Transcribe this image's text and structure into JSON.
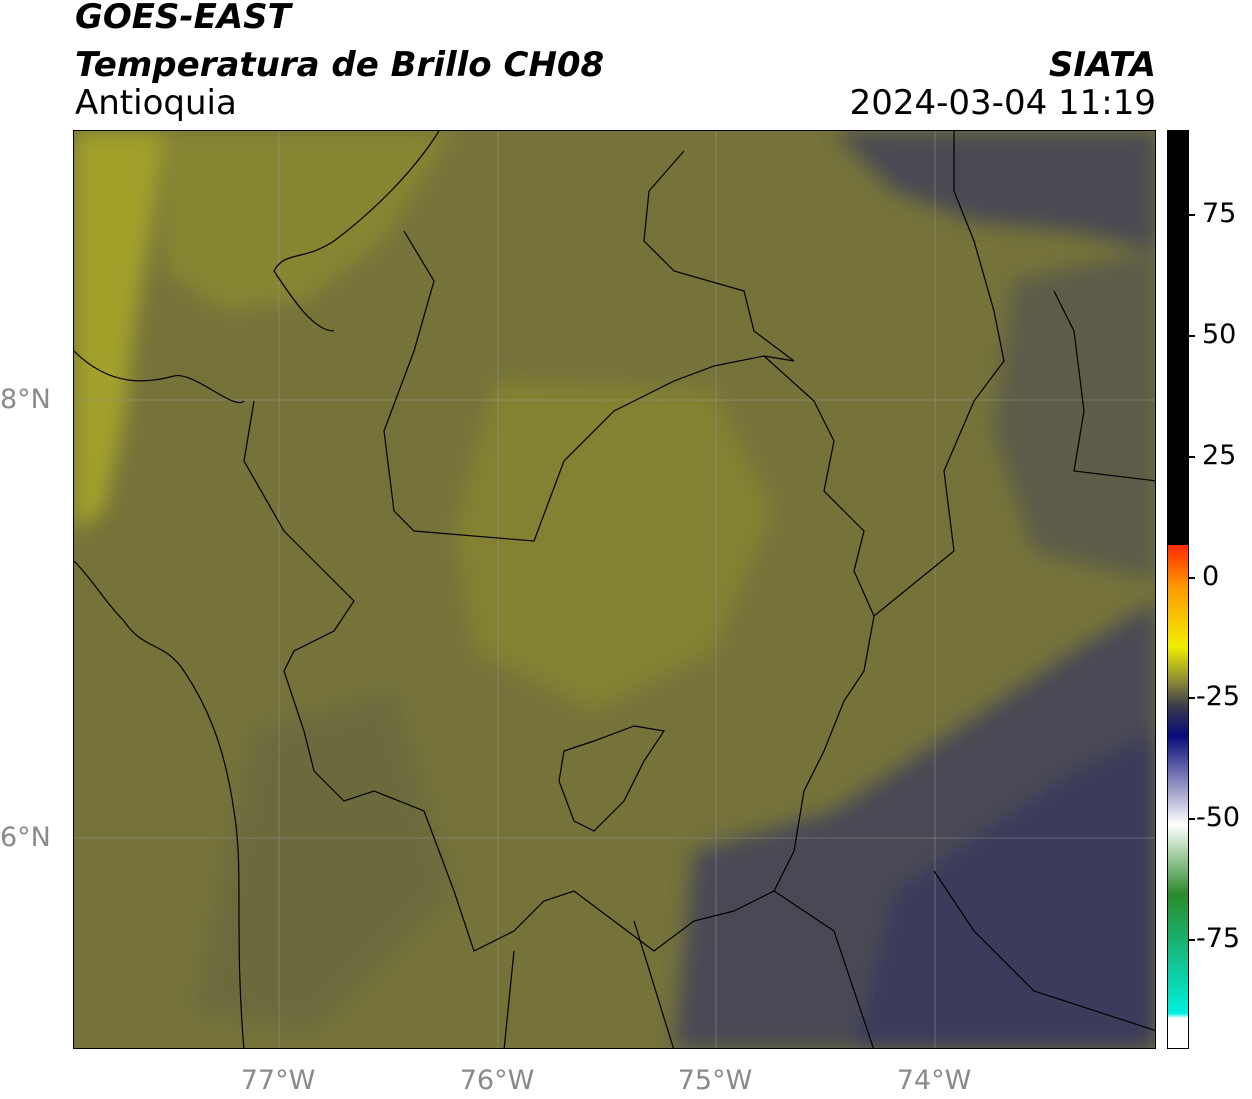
{
  "header": {
    "title_line1": "GOES-EAST",
    "title_line2": "Temperatura de Brillo CH08",
    "region": "Antioquia",
    "organization": "SIATA",
    "datetime": "2024-03-04 11:19"
  },
  "map": {
    "lat_ticks": [
      {
        "label": "8°N",
        "value": 8
      },
      {
        "label": "6°N",
        "value": 6
      }
    ],
    "lon_ticks": [
      {
        "label": "77°W",
        "value": -77
      },
      {
        "label": "76°W",
        "value": -76
      },
      {
        "label": "75°W",
        "value": -75
      },
      {
        "label": "74°W",
        "value": -74
      }
    ],
    "extent": {
      "lon_min": -77.95,
      "lon_max": -73.0,
      "lat_min": 5.0,
      "lat_max": 9.2
    }
  },
  "colorbar": {
    "ticks": [
      {
        "label": "75",
        "value": 75
      },
      {
        "label": "50",
        "value": 50
      },
      {
        "label": "25",
        "value": 25
      },
      {
        "label": "0",
        "value": 0
      },
      {
        "label": "-25",
        "value": -25
      },
      {
        "label": "-50",
        "value": -50
      },
      {
        "label": "-75",
        "value": -75
      }
    ],
    "range": [
      -93,
      92
    ],
    "colors": {
      "black_band": "#000000",
      "red": "#ff2a00",
      "orange": "#ff9900",
      "yellow": "#f2ee00",
      "olive": "#8a8a35",
      "gray": "#3b3b4a",
      "navy": "#0a0a7a",
      "white": "#ffffff",
      "green": "#2a8a2a",
      "cyan": "#00f0e0"
    }
  }
}
